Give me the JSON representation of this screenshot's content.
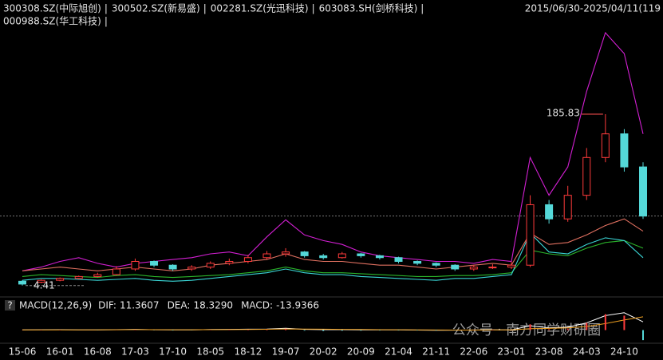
{
  "chart_data": {
    "type": "candlestick",
    "separator": "|",
    "date_range": "2015/06/30-2025/04/11(119",
    "categories": [
      "15-06",
      null,
      "16-01",
      null,
      "16-08",
      null,
      "17-03",
      null,
      "17-10",
      null,
      "18-05",
      null,
      "18-12",
      null,
      "19-07",
      null,
      "20-02",
      null,
      "20-09",
      null,
      "21-04",
      null,
      "21-11",
      null,
      "22-06",
      null,
      "23-01",
      null,
      "23-08",
      null,
      "24-03",
      null,
      "24-10",
      null
    ],
    "ylim": [
      0,
      294
    ],
    "candles": {
      "name": "300308.SZ(中际旭创)",
      "color": "#e6e6e6",
      "color_up": "#ff3b3b",
      "color_down": "#54d8d8",
      "open": [
        9,
        8,
        10,
        12,
        14,
        16,
        22,
        30,
        26,
        22,
        24,
        28,
        30,
        34,
        38,
        40,
        36,
        34,
        38,
        36,
        34,
        30,
        28,
        26,
        22,
        24,
        24,
        26,
        90,
        75,
        100,
        140,
        165,
        130
      ],
      "high": [
        10,
        11,
        13,
        15,
        18,
        25,
        33,
        31,
        27,
        26,
        30,
        33,
        37,
        41,
        44,
        41,
        38,
        40,
        39,
        37,
        35,
        31,
        29,
        27,
        26,
        27,
        30,
        100,
        95,
        110,
        150,
        185.83,
        170,
        135
      ],
      "low": [
        4.41,
        7,
        9,
        11,
        13,
        15,
        20,
        24,
        20,
        20,
        22,
        26,
        28,
        32,
        35,
        34,
        32,
        33,
        34,
        32,
        28,
        26,
        24,
        20,
        20,
        22,
        22,
        24,
        70,
        72,
        95,
        135,
        125,
        75
      ],
      "close": [
        6,
        10,
        12,
        14,
        16,
        22,
        30,
        26,
        22,
        24,
        28,
        30,
        34,
        38,
        40,
        36,
        34,
        38,
        36,
        34,
        30,
        28,
        26,
        22,
        24,
        24,
        26,
        90,
        75,
        100,
        140,
        165,
        130,
        78
      ]
    },
    "high_label": 185.83,
    "low_label": 4.41,
    "series": [
      {
        "name": "300502.SZ(新易盛)",
        "color": "#d21fd2",
        "values": [
          20,
          24,
          30,
          34,
          28,
          24,
          28,
          30,
          32,
          34,
          38,
          40,
          36,
          56,
          74,
          58,
          52,
          48,
          40,
          36,
          34,
          32,
          30,
          30,
          28,
          32,
          30,
          140,
          100,
          130,
          210,
          272,
          250,
          165
        ]
      },
      {
        "name": "002281.SZ(光迅科技)",
        "color": "#2bb52b",
        "values": [
          14,
          16,
          15,
          14,
          13,
          15,
          16,
          14,
          13,
          14,
          15,
          16,
          18,
          20,
          24,
          20,
          18,
          18,
          17,
          16,
          15,
          14,
          14,
          15,
          15,
          16,
          18,
          42,
          38,
          36,
          44,
          50,
          52,
          44
        ]
      },
      {
        "name": "603083.SH(剑桥科技)",
        "color": "#3ad6d6",
        "values": [
          10,
          12,
          12,
          11,
          10,
          11,
          12,
          10,
          9,
          10,
          12,
          14,
          16,
          18,
          22,
          18,
          16,
          16,
          14,
          13,
          12,
          11,
          10,
          12,
          12,
          14,
          16,
          60,
          40,
          38,
          48,
          55,
          52,
          34
        ]
      },
      {
        "name": "000988.SZ(华工科技)",
        "color": "#e07060",
        "values": [
          20,
          22,
          24,
          22,
          20,
          22,
          24,
          22,
          20,
          22,
          26,
          28,
          30,
          32,
          38,
          32,
          30,
          30,
          28,
          26,
          26,
          24,
          22,
          24,
          26,
          28,
          26,
          60,
          48,
          50,
          58,
          68,
          75,
          62
        ]
      }
    ],
    "macd": {
      "help": "?",
      "title": "MACD(12,26,9)",
      "ylim": [
        -16,
        26
      ],
      "series": [
        {
          "name": "DIF:",
          "color": "#ffffff",
          "values": [
            0.3,
            0.5,
            0.6,
            0.4,
            0.3,
            0.6,
            1,
            0.5,
            0.2,
            0.4,
            0.8,
            1,
            1.2,
            1.5,
            2.5,
            1,
            0.6,
            0.6,
            0.4,
            0.3,
            0.2,
            0,
            -0.2,
            -0.1,
            0.1,
            0.5,
            0.3,
            6,
            3,
            4,
            10,
            20,
            24,
            11.3607
          ]
        },
        {
          "name": "DEA:",
          "color": "#f0a020",
          "values": [
            0.2,
            0.3,
            0.4,
            0.4,
            0.4,
            0.5,
            0.7,
            0.6,
            0.5,
            0.5,
            0.6,
            0.7,
            0.9,
            1.1,
            1.6,
            1.4,
            1.2,
            1,
            0.8,
            0.6,
            0.5,
            0.3,
            0.1,
            0,
            0,
            0.2,
            0.2,
            2,
            2.4,
            3,
            5,
            9,
            14,
            18.329
          ],
          "value_labels": [
            null,
            null,
            null,
            null,
            null,
            null,
            null,
            null,
            null,
            null,
            null,
            null,
            null,
            null,
            null,
            null,
            null,
            null,
            null,
            null,
            null,
            null,
            null,
            null,
            null,
            null,
            null,
            null,
            null,
            null,
            null,
            null,
            null,
            "18.3290"
          ]
        },
        {
          "name": "MACD:",
          "color": "#ffffff",
          "color_up": "#ff3b3b",
          "color_down": "#54d8d8",
          "values": [
            0.2,
            0.4,
            0.4,
            0,
            -0.2,
            0.2,
            0.6,
            -0.2,
            -0.6,
            -0.2,
            0.4,
            0.6,
            0.6,
            0.8,
            1.8,
            -0.8,
            -1.2,
            -0.8,
            -0.8,
            -0.6,
            -0.6,
            -0.6,
            -0.6,
            -0.2,
            0.2,
            0.6,
            0.2,
            8,
            1.2,
            2,
            10,
            22,
            20,
            -13.9366
          ]
        }
      ]
    },
    "watermark": "公众号 · 南方同学财研圈"
  }
}
